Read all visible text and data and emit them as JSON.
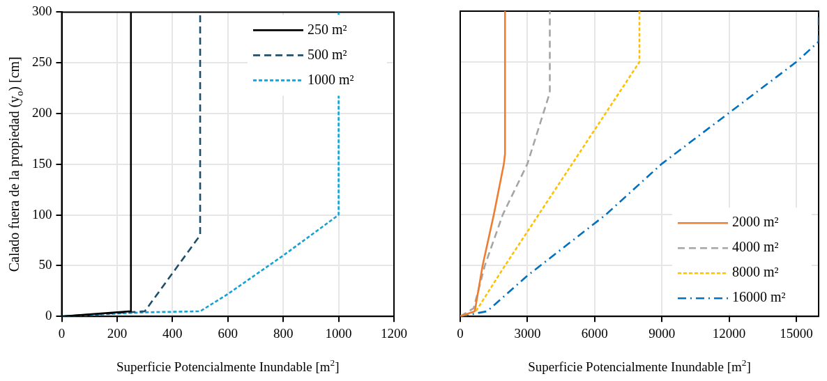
{
  "chart_data": [
    {
      "type": "line",
      "xlabel": "Superficie Potencialmente Inundable [m$^{2}$]",
      "ylabel": "Calado fuera de la propiedad (y$_{o}$) [cm]",
      "xlim": [
        0,
        1200
      ],
      "xticks": [
        0,
        200,
        400,
        600,
        800,
        1000,
        1200
      ],
      "ylim": [
        0,
        300
      ],
      "yticks": [
        0,
        50,
        100,
        150,
        200,
        250,
        300
      ],
      "grid": true,
      "legend": "top right",
      "marker": "none",
      "series": [
        {
          "name": "250 m²",
          "color": "#000000",
          "line_style": "solid",
          "x": [
            0,
            250,
            250
          ],
          "values": [
            0,
            5,
            300
          ]
        },
        {
          "name": "500 m²",
          "color": "#1f4e6b",
          "line_style": "dashed",
          "x": [
            0,
            300,
            500,
            500
          ],
          "values": [
            0,
            5,
            80,
            300
          ]
        },
        {
          "name": "1000 m²",
          "color": "#14a0d2",
          "line_style": "dotted",
          "x": [
            0,
            300,
            500,
            600,
            800,
            1000,
            1000
          ],
          "values": [
            0,
            4,
            5,
            22,
            60,
            100,
            300
          ]
        }
      ]
    },
    {
      "type": "line",
      "xlabel": "Superficie Potencialmente Inundable [m$^{2}$]",
      "xlim": [
        0,
        16000
      ],
      "xticks": [
        0,
        3000,
        6000,
        9000,
        12000,
        15000
      ],
      "ylim": [
        0,
        300
      ],
      "yticks": [
        0,
        50,
        100,
        150,
        200,
        250,
        300
      ],
      "tick_labels": "x",
      "grid": true,
      "legend": "bottom right",
      "marker": "none",
      "series": [
        {
          "name": "2000 m²",
          "color": "#ed7d31",
          "line_style": "solid",
          "x": [
            0,
            650,
            1000,
            1500,
            1950,
            2000,
            2000
          ],
          "values": [
            0,
            5,
            50,
            100,
            150,
            160,
            300
          ]
        },
        {
          "name": "4000 m²",
          "color": "#a5a5a5",
          "line_style": "dashed",
          "x": [
            0,
            600,
            1100,
            1900,
            3000,
            4000,
            4000
          ],
          "values": [
            0,
            8,
            50,
            100,
            150,
            220,
            300
          ]
        },
        {
          "name": "8000 m²",
          "color": "#ffc000",
          "line_style": "dotted",
          "x": [
            0,
            700,
            2000,
            3500,
            5000,
            6500,
            8000,
            8000
          ],
          "values": [
            0,
            5,
            50,
            100,
            150,
            200,
            250,
            300
          ]
        },
        {
          "name": "16000 m²",
          "color": "#0070c0",
          "line_style": "dashdot",
          "x": [
            0,
            1200,
            3000,
            6500,
            9000,
            12000,
            15000,
            16000,
            16000
          ],
          "values": [
            0,
            5,
            40,
            100,
            150,
            200,
            250,
            270,
            300
          ]
        }
      ]
    }
  ]
}
